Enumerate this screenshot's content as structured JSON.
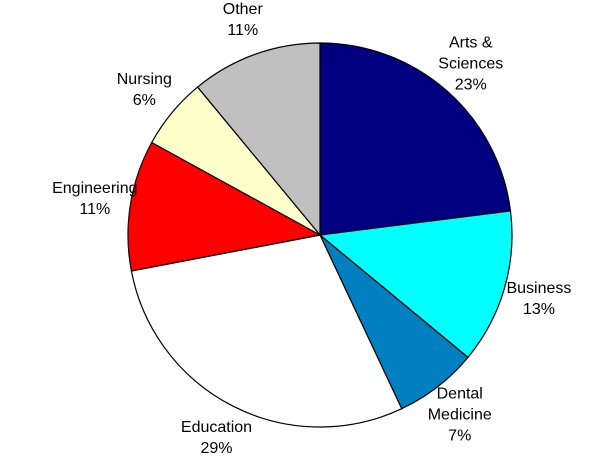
{
  "chart_data": {
    "type": "pie",
    "categories": [
      "Arts & Sciences",
      "Business",
      "Dental Medicine",
      "Education",
      "Engineering",
      "Nursing",
      "Other"
    ],
    "values": [
      23,
      13,
      7,
      29,
      11,
      6,
      11
    ],
    "value_labels": [
      "23%",
      "13%",
      "7%",
      "29%",
      "11%",
      "6%",
      "11%"
    ],
    "colors": [
      "#000080",
      "#00ffff",
      "#0080c0",
      "#ffffff",
      "#ff0000",
      "#ffffcc",
      "#c0c0c0"
    ]
  }
}
